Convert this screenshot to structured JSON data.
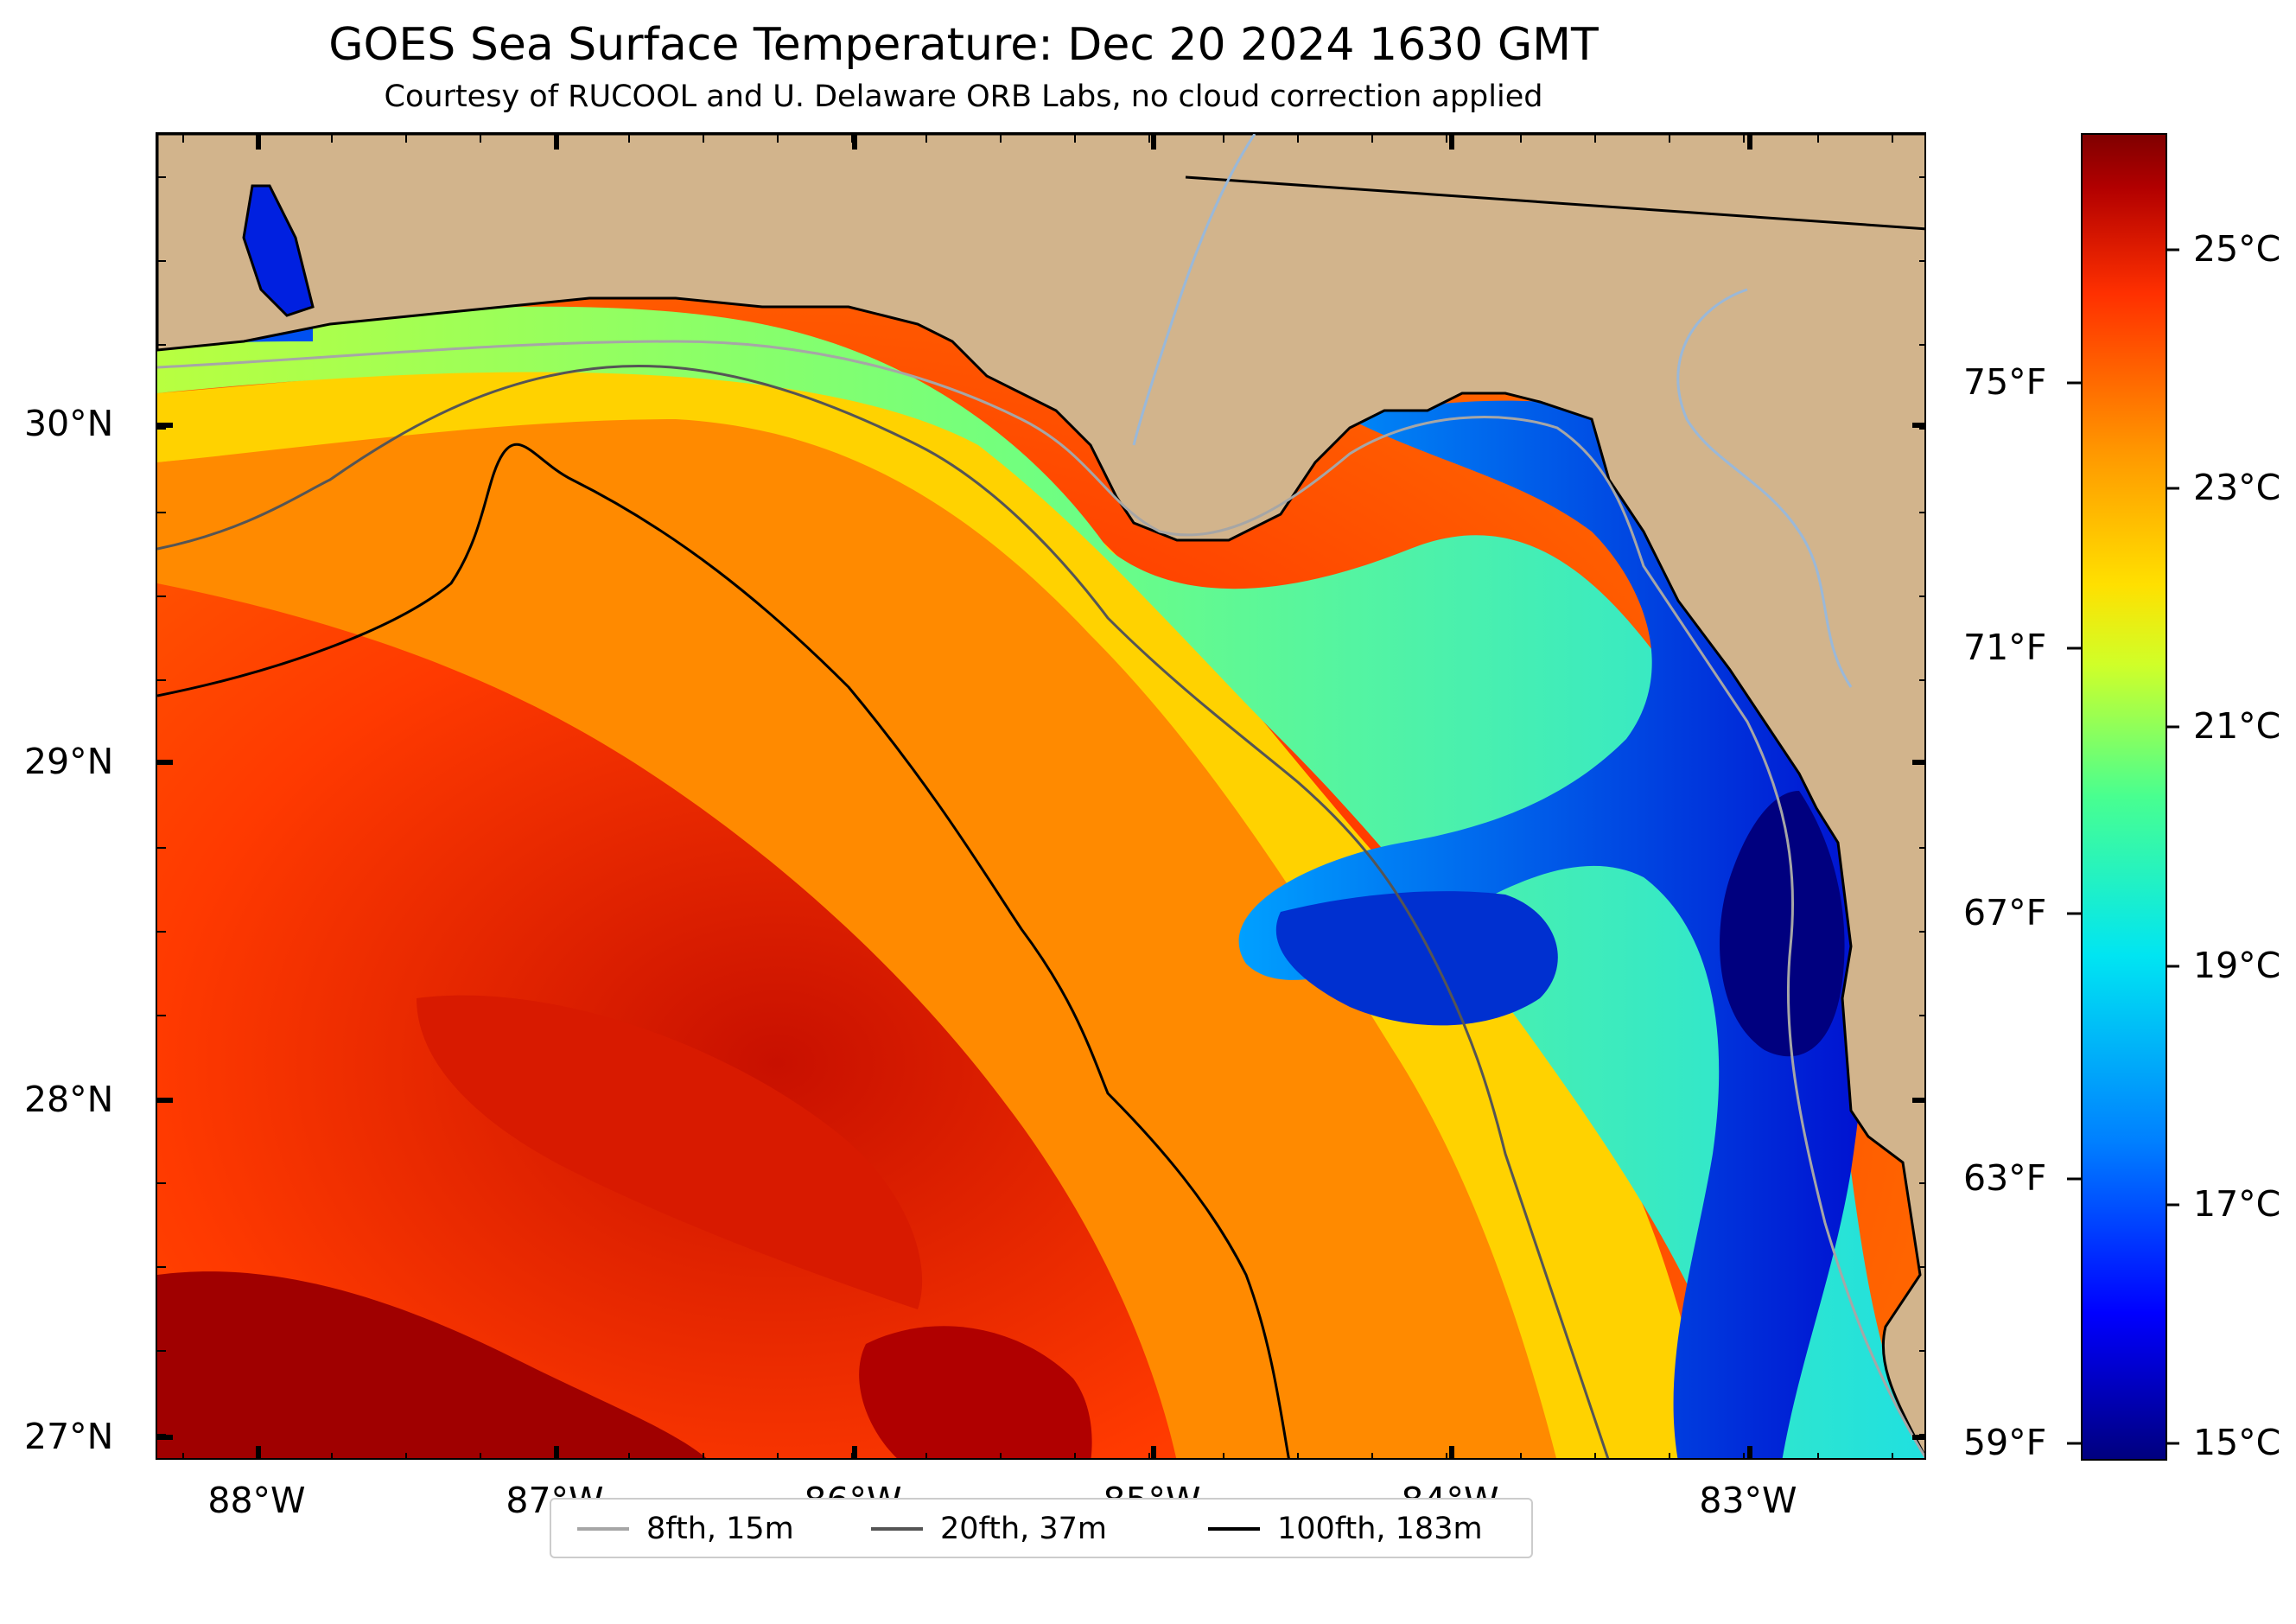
{
  "title": "GOES Sea Surface Temperature: Dec 20 2024 1630 GMT",
  "subtitle": "Courtesy of RUCOOL and U. Delaware ORB Labs, no cloud correction applied",
  "axes": {
    "lat_labels": [
      "30°N",
      "29°N",
      "28°N",
      "27°N"
    ],
    "lon_labels": [
      "88°W",
      "87°W",
      "86°W",
      "85°W",
      "84°W",
      "83°W"
    ]
  },
  "colorbar": {
    "celsius_labels": [
      "25°C",
      "23°C",
      "21°C",
      "19°C",
      "17°C",
      "15°C"
    ],
    "fahrenheit_labels": [
      "75°F",
      "71°F",
      "67°F",
      "63°F",
      "59°F"
    ],
    "colormap": "jet",
    "range_c": [
      14.8,
      26.0
    ]
  },
  "legend": {
    "items": [
      {
        "label": "8fth, 15m",
        "color": "#a6a6a6"
      },
      {
        "label": "20fth, 37m",
        "color": "#555555"
      },
      {
        "label": "100fth, 183m",
        "color": "#000000"
      }
    ]
  },
  "colors": {
    "land": "#d2b48c",
    "river": "#9ab8d8",
    "coast": "#000000"
  },
  "map_extent": {
    "lon": [
      -88.33,
      -82.4
    ],
    "lat": [
      26.93,
      30.86
    ]
  }
}
